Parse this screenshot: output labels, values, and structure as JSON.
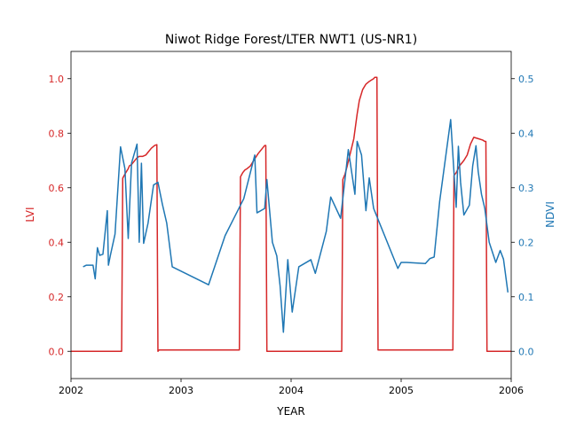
{
  "chart_data": {
    "type": "line",
    "title": "Niwot Ridge Forest/LTER NWT1 (US-NR1)",
    "xlabel": "YEAR",
    "ylabel_left": "LVI",
    "ylabel_right": "NDVI",
    "xlim": [
      2002.0,
      2006.0
    ],
    "ylim_left": [
      -0.1,
      1.1
    ],
    "ylim_right": [
      -0.05,
      0.55
    ],
    "x_ticks": [
      2002,
      2003,
      2004,
      2005,
      2006
    ],
    "x_tick_labels": [
      "2002",
      "2003",
      "2004",
      "2005",
      "2006"
    ],
    "y_left_ticks": [
      0.0,
      0.2,
      0.4,
      0.6,
      0.8,
      1.0
    ],
    "y_left_tick_labels": [
      "0.0",
      "0.2",
      "0.4",
      "0.6",
      "0.8",
      "1.0"
    ],
    "y_right_ticks": [
      0.0,
      0.1,
      0.2,
      0.3,
      0.4,
      0.5
    ],
    "y_right_tick_labels": [
      "0.0",
      "0.1",
      "0.2",
      "0.3",
      "0.4",
      "0.5"
    ],
    "grid": false,
    "colors": {
      "lvi": "#d62728",
      "ndvi": "#1f77b4",
      "axes": "#000000"
    },
    "series": [
      {
        "axis": "left",
        "x": [
          2002.0,
          2002.46,
          2002.47,
          2002.49,
          2002.52,
          2002.53,
          2002.55,
          2002.56,
          2002.6,
          2002.62,
          2002.65,
          2002.68,
          2002.7,
          2002.73,
          2002.76,
          2002.78,
          2002.79,
          2002.8,
          2003.53,
          2003.54,
          2003.56,
          2003.58,
          2003.6,
          2003.63,
          2003.66,
          2003.7,
          2003.74,
          2003.76,
          2003.77,
          2003.78,
          2004.46,
          2004.47,
          2004.49,
          2004.51,
          2004.54,
          2004.57,
          2004.6,
          2004.62,
          2004.65,
          2004.68,
          2004.71,
          2004.73,
          2004.75,
          2004.76,
          2004.78,
          2004.79,
          2005.47,
          2005.48,
          2005.5,
          2005.53,
          2005.57,
          2005.6,
          2005.63,
          2005.66,
          2005.7,
          2005.74,
          2005.76,
          2005.77,
          2005.78,
          2006.0
        ],
        "values": [
          0.0,
          0.0,
          0.635,
          0.65,
          0.67,
          0.68,
          0.685,
          0.69,
          0.71,
          0.715,
          0.715,
          0.72,
          0.73,
          0.745,
          0.755,
          0.758,
          0.0,
          0.005,
          0.005,
          0.64,
          0.655,
          0.665,
          0.67,
          0.68,
          0.7,
          0.725,
          0.745,
          0.755,
          0.755,
          0.0,
          0.0,
          0.63,
          0.65,
          0.68,
          0.73,
          0.78,
          0.87,
          0.92,
          0.96,
          0.98,
          0.99,
          0.995,
          1.0,
          1.005,
          1.005,
          0.005,
          0.005,
          0.645,
          0.655,
          0.68,
          0.7,
          0.72,
          0.76,
          0.785,
          0.78,
          0.775,
          0.77,
          0.77,
          0.0,
          0.0
        ]
      },
      {
        "axis": "right",
        "x": [
          2002.11,
          2002.14,
          2002.2,
          2002.22,
          2002.24,
          2002.26,
          2002.29,
          2002.33,
          2002.34,
          2002.36,
          2002.4,
          2002.45,
          2002.47,
          2002.49,
          2002.52,
          2002.55,
          2002.6,
          2002.62,
          2002.64,
          2002.66,
          2002.7,
          2002.75,
          2002.79,
          2002.83,
          2002.87,
          2002.92,
          2003.25,
          2003.4,
          2003.57,
          2003.67,
          2003.69,
          2003.76,
          2003.78,
          2003.83,
          2003.87,
          2003.9,
          2003.93,
          2003.97,
          2004.01,
          2004.07,
          2004.18,
          2004.22,
          2004.32,
          2004.36,
          2004.45,
          2004.52,
          2004.58,
          2004.6,
          2004.64,
          2004.68,
          2004.71,
          2004.75,
          2004.97,
          2005.0,
          2005.05,
          2005.22,
          2005.26,
          2005.3,
          2005.35,
          2005.45,
          2005.5,
          2005.52,
          2005.54,
          2005.57,
          2005.62,
          2005.65,
          2005.68,
          2005.7,
          2005.73,
          2005.76,
          2005.8,
          2005.86,
          2005.9,
          2005.93,
          2005.97
        ],
        "values": [
          0.155,
          0.158,
          0.158,
          0.133,
          0.19,
          0.176,
          0.178,
          0.258,
          0.158,
          0.178,
          0.215,
          0.375,
          0.355,
          0.335,
          0.207,
          0.345,
          0.38,
          0.2,
          0.345,
          0.198,
          0.235,
          0.305,
          0.31,
          0.27,
          0.235,
          0.155,
          0.122,
          0.212,
          0.28,
          0.36,
          0.254,
          0.262,
          0.315,
          0.2,
          0.175,
          0.12,
          0.035,
          0.168,
          0.072,
          0.155,
          0.168,
          0.143,
          0.22,
          0.283,
          0.244,
          0.37,
          0.288,
          0.385,
          0.36,
          0.258,
          0.318,
          0.262,
          0.152,
          0.163,
          0.163,
          0.161,
          0.17,
          0.173,
          0.275,
          0.425,
          0.264,
          0.376,
          0.31,
          0.25,
          0.268,
          0.34,
          0.377,
          0.33,
          0.288,
          0.262,
          0.2,
          0.163,
          0.185,
          0.169,
          0.108
        ]
      }
    ]
  }
}
